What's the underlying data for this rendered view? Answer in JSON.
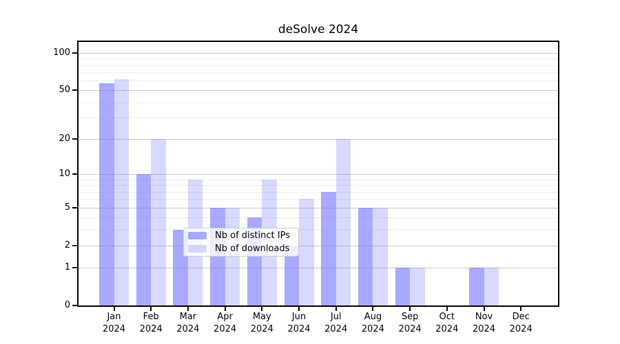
{
  "chart_data": {
    "type": "bar",
    "title": "deSolve 2024",
    "categories": [
      "Jan",
      "Feb",
      "Mar",
      "Apr",
      "May",
      "Jun",
      "Jul",
      "Aug",
      "Sep",
      "Oct",
      "Nov",
      "Dec"
    ],
    "year_label": "2024",
    "series": [
      {
        "name": "Nb of distinct IPs",
        "color": "rgba(120,120,255,0.64)",
        "values": [
          57,
          10,
          3,
          5,
          4,
          2,
          7,
          5,
          1,
          0,
          1,
          0
        ]
      },
      {
        "name": "Nb of downloads",
        "color": "rgba(120,120,255,0.28)",
        "values": [
          62,
          20,
          9,
          5,
          9,
          6,
          20,
          5,
          1,
          0,
          1,
          0
        ]
      }
    ],
    "yscale": "log1p",
    "ylim": [
      0,
      123
    ],
    "yticks": [
      0,
      1,
      2,
      5,
      10,
      20,
      50,
      100
    ],
    "minor_yticks": [
      3,
      4,
      6,
      7,
      8,
      9,
      30,
      40,
      60,
      70,
      80,
      90
    ],
    "grid": true,
    "legend_position": "lower center inside",
    "colors": {
      "grid_major": "#c9c9c9",
      "grid_minor": "#ededed",
      "axis": "#000000",
      "background": "#ffffff"
    }
  }
}
